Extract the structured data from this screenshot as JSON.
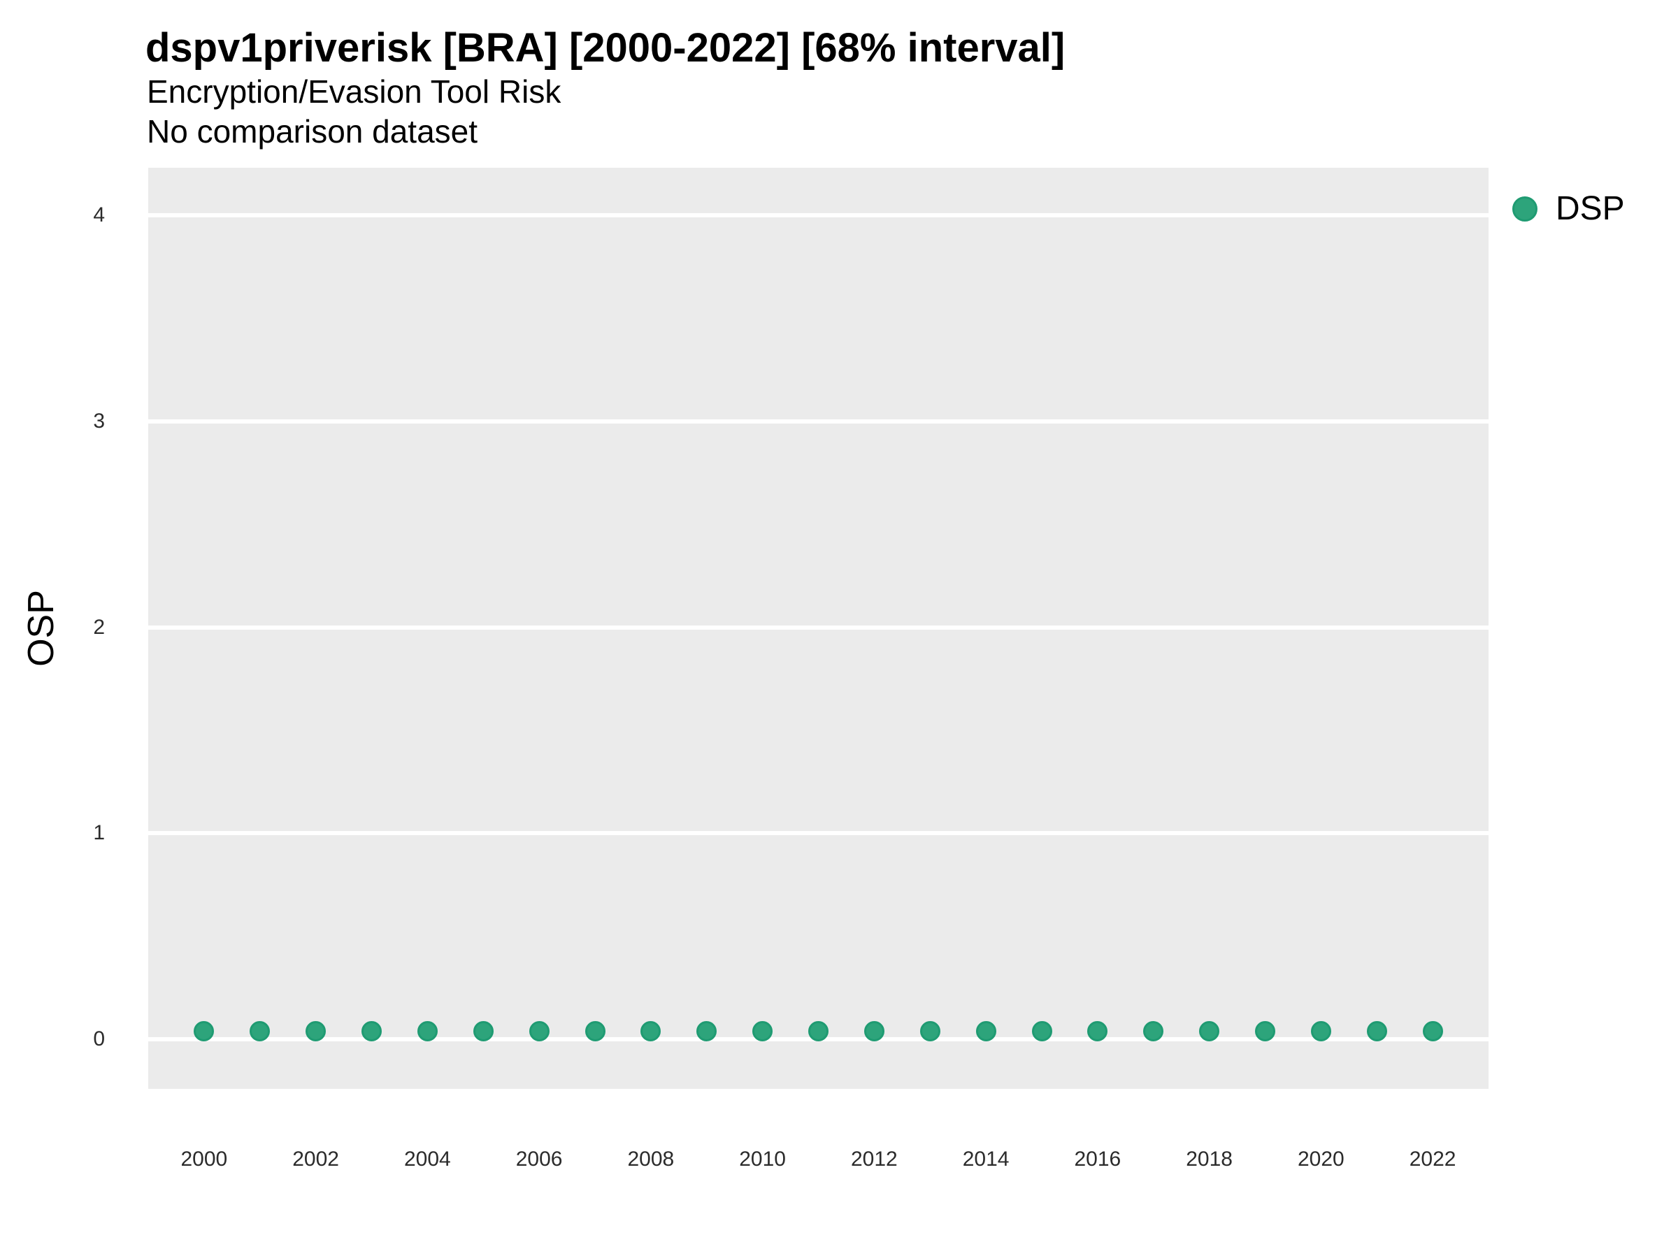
{
  "header": {
    "title": "dspv1priverisk [BRA] [2000-2022] [68% interval]",
    "subtitle": "Encryption/Evasion Tool Risk",
    "note": "No comparison dataset"
  },
  "y_axis": {
    "title": "OSP"
  },
  "legend": {
    "position": "right-top",
    "items": [
      {
        "label": "DSP",
        "marker": "circle-icon",
        "color": "#2DA47B"
      }
    ]
  },
  "colors": {
    "page_bg": "#FFFFFF",
    "panel_bg": "#EBEBEB",
    "gridline": "#FFFFFF",
    "point_fill": "#2DA47B",
    "point_stroke": "#1F9B72",
    "text": "#000000",
    "tick_text": "#2B2B2B"
  },
  "chart_data": {
    "type": "scatter",
    "title": "dspv1priverisk [BRA] [2000-2022] [68% interval]",
    "subtitle": "Encryption/Evasion Tool Risk",
    "caption": "No comparison dataset",
    "xlabel": "",
    "ylabel": "OSP",
    "xlim": [
      1999,
      2023
    ],
    "ylim": [
      -0.24,
      4.23
    ],
    "xticks": [
      2000,
      2002,
      2004,
      2006,
      2008,
      2010,
      2012,
      2014,
      2016,
      2018,
      2020,
      2022
    ],
    "yticks": [
      0,
      1,
      2,
      3,
      4
    ],
    "grid": "horizontal-major-only",
    "legend_position": "right",
    "series": [
      {
        "name": "DSP",
        "color": "#2DA47B",
        "x": [
          2000,
          2001,
          2002,
          2003,
          2004,
          2005,
          2006,
          2007,
          2008,
          2009,
          2010,
          2011,
          2012,
          2013,
          2014,
          2015,
          2016,
          2017,
          2018,
          2019,
          2020,
          2021,
          2022
        ],
        "y": [
          0.04,
          0.04,
          0.04,
          0.04,
          0.04,
          0.04,
          0.04,
          0.04,
          0.04,
          0.04,
          0.04,
          0.04,
          0.04,
          0.04,
          0.04,
          0.04,
          0.04,
          0.04,
          0.04,
          0.04,
          0.04,
          0.04,
          0.04
        ]
      }
    ]
  }
}
